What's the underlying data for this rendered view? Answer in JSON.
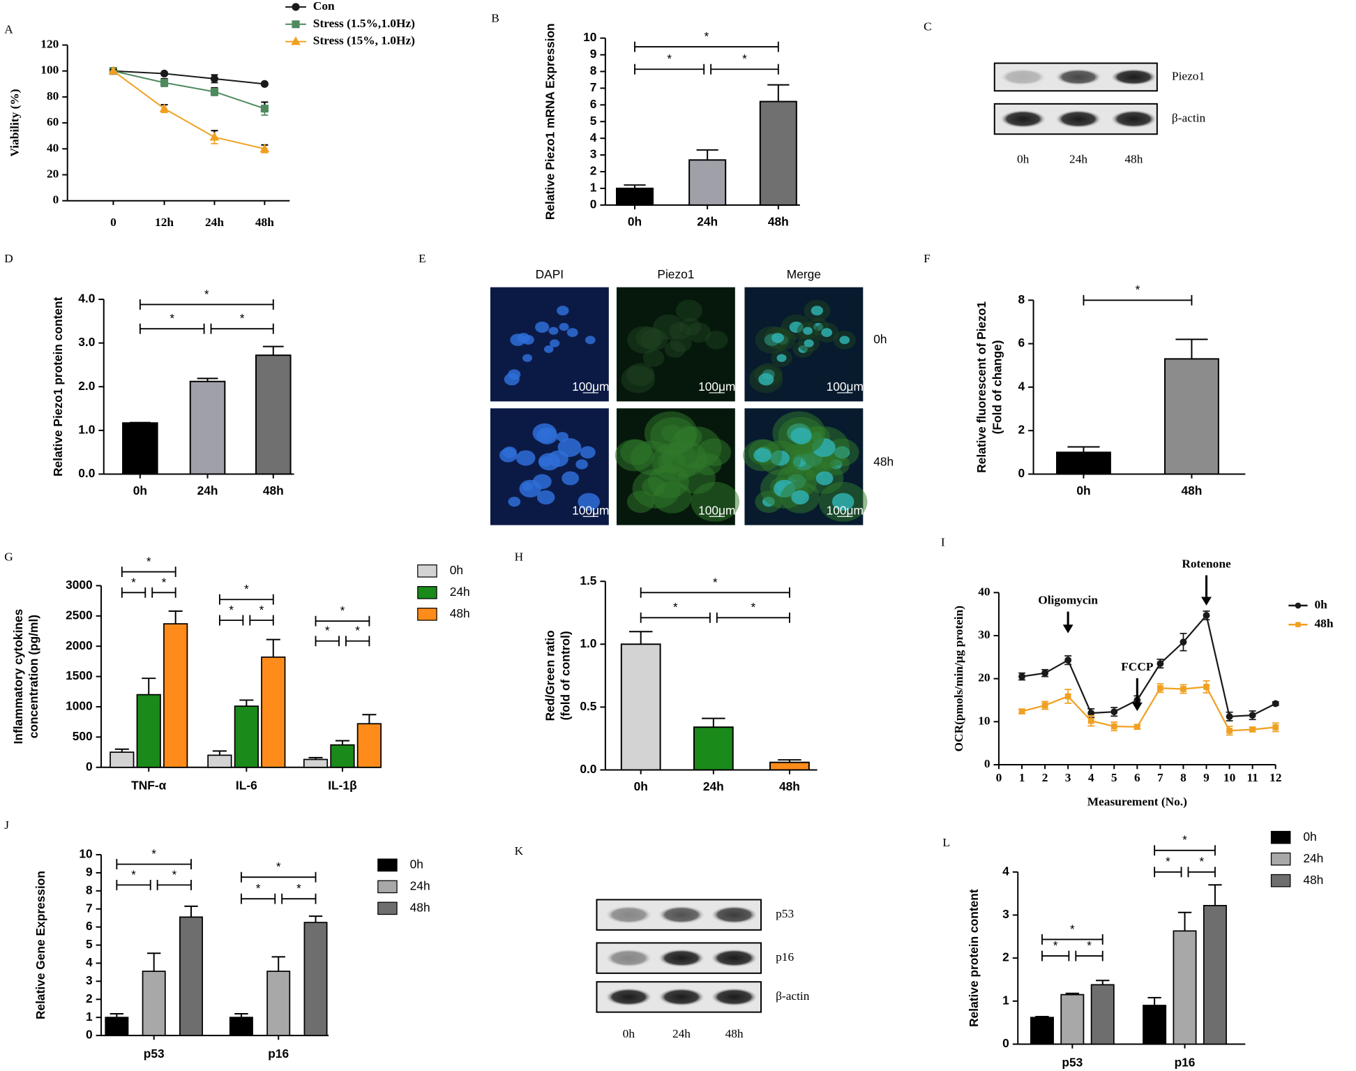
{
  "chart_data": [
    {
      "type": "line",
      "panel": "A",
      "ylabel": "Viability (%)",
      "categories": [
        "0",
        "12h",
        "24h",
        "48h"
      ],
      "ylim": [
        0,
        120
      ],
      "yticks": [
        0,
        20,
        40,
        60,
        80,
        100,
        120
      ],
      "series": [
        {
          "name": "Con",
          "color": "#1a1a1a",
          "marker": "circle",
          "values": [
            100,
            98,
            94,
            90
          ],
          "errors": [
            1,
            1,
            3,
            1
          ]
        },
        {
          "name": "Stress (1.5%,1.0Hz)",
          "color": "#4e8a5e",
          "marker": "square",
          "values": [
            100,
            91,
            84,
            71
          ],
          "errors": [
            1,
            3,
            3,
            5
          ]
        },
        {
          "name": "Stress (15%, 1.0Hz)",
          "color": "#f0a020",
          "marker": "triangle",
          "values": [
            100,
            71,
            49,
            40
          ],
          "errors": [
            1,
            3,
            5,
            3
          ]
        }
      ]
    },
    {
      "type": "bar",
      "panel": "B",
      "ylabel": "Relative Piezo1 mRNA Expression",
      "categories": [
        "0h",
        "24h",
        "48h"
      ],
      "values": [
        1,
        2.7,
        6.2
      ],
      "errors": [
        0.2,
        0.6,
        1.0
      ],
      "colors": [
        "#000000",
        "#a0a0a8",
        "#707070"
      ],
      "ylim": [
        0,
        10
      ],
      "yticks": [
        0,
        1,
        2,
        3,
        4,
        5,
        6,
        7,
        8,
        9,
        10
      ],
      "significance": [
        "*",
        "*",
        "*"
      ]
    },
    {
      "type": "blot",
      "panel": "C",
      "bands": [
        "Piezo1",
        "β-actin"
      ],
      "lanes": [
        "0h",
        "24h",
        "48h"
      ]
    },
    {
      "type": "bar",
      "panel": "D",
      "ylabel": "Relative Piezo1 protein content",
      "categories": [
        "0h",
        "24h",
        "48h"
      ],
      "values": [
        1.17,
        2.12,
        2.72
      ],
      "errors": [
        0.01,
        0.07,
        0.2
      ],
      "colors": [
        "#000000",
        "#a0a0a8",
        "#707070"
      ],
      "ylim": [
        0,
        4
      ],
      "yticks": [
        {
          "value": 0,
          "label": "0.0"
        },
        {
          "value": 1,
          "label": "1.0"
        },
        {
          "value": 2,
          "label": "2.0"
        },
        {
          "value": 3,
          "label": "3.0"
        },
        {
          "value": 4,
          "label": "4.0"
        }
      ],
      "significance": [
        "*",
        "*",
        "*"
      ]
    },
    {
      "type": "images",
      "panel": "E",
      "columns": [
        "DAPI",
        "Piezo1",
        "Merge"
      ],
      "rows": [
        "0h",
        "48h"
      ],
      "scale_label": "100μm"
    },
    {
      "type": "bar",
      "panel": "F",
      "ylabel": [
        "Relative fluorescent of  Piezo1",
        "(Fold of change)"
      ],
      "categories": [
        "0h",
        "48h"
      ],
      "values": [
        1,
        5.3
      ],
      "errors": [
        0.25,
        0.9
      ],
      "colors": [
        "#000000",
        "#8c8c8c"
      ],
      "ylim": [
        0,
        8
      ],
      "yticks": [
        0,
        2,
        4,
        6,
        8
      ],
      "significance": [
        "*"
      ]
    },
    {
      "type": "groupedbar",
      "panel": "G",
      "ylabel": [
        "Inflammatory cytokines",
        "concentration (pg/ml)"
      ],
      "categories": [
        "TNF-α",
        "IL-6",
        "IL-1β"
      ],
      "ylim": [
        0,
        3000
      ],
      "yticks": [
        0,
        500,
        1000,
        1500,
        2000,
        2500,
        3000
      ],
      "series": [
        {
          "name": "0h",
          "color": "#d3d3d3",
          "values": [
            250,
            200,
            130
          ],
          "errors": [
            50,
            70,
            30
          ]
        },
        {
          "name": "24h",
          "color": "#1a8a1a",
          "values": [
            1200,
            1010,
            370
          ],
          "errors": [
            270,
            100,
            70
          ]
        },
        {
          "name": "48h",
          "color": "#ff8c1a",
          "values": [
            2370,
            1820,
            720
          ],
          "errors": [
            210,
            290,
            150
          ]
        }
      ],
      "significance": [
        "*",
        "*",
        "*",
        "*",
        "*",
        "*",
        "*",
        "*",
        "*"
      ]
    },
    {
      "type": "bar",
      "panel": "H",
      "ylabel": [
        "Red/Green ratio",
        "(fold of control)"
      ],
      "categories": [
        "0h",
        "24h",
        "48h"
      ],
      "values": [
        1.0,
        0.34,
        0.06
      ],
      "errors": [
        0.1,
        0.07,
        0.02
      ],
      "colors": [
        "#d3d3d3",
        "#1a8a1a",
        "#ff8c1a"
      ],
      "ylim": [
        0,
        1.5
      ],
      "yticks": [
        {
          "value": 0,
          "label": "0.0"
        },
        0.5,
        {
          "value": 1,
          "label": "1.0"
        },
        1.5
      ],
      "significance": [
        "*",
        "*",
        "*"
      ]
    },
    {
      "type": "linex",
      "panel": "I",
      "xlabel": "Measurement (No.)",
      "ylabel": "OCR(pmols/min/μg protein)",
      "x": [
        1,
        2,
        3,
        4,
        5,
        6,
        7,
        8,
        9,
        10,
        11,
        12
      ],
      "xlim": [
        0,
        12
      ],
      "xticks": [
        0,
        1,
        2,
        3,
        4,
        5,
        6,
        7,
        8,
        9,
        10,
        11,
        12
      ],
      "ylim": [
        0,
        40
      ],
      "yticks": [
        0,
        10,
        20,
        30,
        40
      ],
      "series": [
        {
          "name": "0h",
          "color": "#1a1a1a",
          "values": [
            20.5,
            21.3,
            24.3,
            12,
            12.3,
            15,
            23.5,
            28.5,
            34.7,
            11.2,
            11.5,
            14.2
          ],
          "errors": [
            0.8,
            0.8,
            1,
            1,
            1,
            1,
            1,
            2,
            1,
            1,
            1,
            0.4
          ]
        },
        {
          "name": "48h",
          "color": "#f0a020",
          "values": [
            12.4,
            13.8,
            15.9,
            10.2,
            8.9,
            8.8,
            17.8,
            17.6,
            18.1,
            7.9,
            8.2,
            8.7
          ],
          "errors": [
            0.5,
            0.9,
            1.6,
            1.2,
            1,
            0.5,
            1,
            1,
            1.4,
            1,
            0.5,
            1
          ]
        }
      ],
      "annotations": [
        {
          "text": "Oligomycin",
          "x": 3
        },
        {
          "text": "FCCP",
          "x": 6
        },
        {
          "text": "Rotenone",
          "x": 9
        }
      ]
    },
    {
      "type": "groupedbar",
      "panel": "J",
      "ylabel": "Relative Gene Expression",
      "categories": [
        "p53",
        "p16"
      ],
      "ylim": [
        0,
        10
      ],
      "yticks": [
        0,
        1,
        2,
        3,
        4,
        5,
        6,
        7,
        8,
        9,
        10
      ],
      "series": [
        {
          "name": "0h",
          "color": "#000000",
          "values": [
            1,
            1
          ],
          "errors": [
            0.2,
            0.2
          ]
        },
        {
          "name": "24h",
          "color": "#a8a8a8",
          "values": [
            3.55,
            3.55
          ],
          "errors": [
            1,
            0.8
          ]
        },
        {
          "name": "48h",
          "color": "#6e6e6e",
          "values": [
            6.55,
            6.25
          ],
          "errors": [
            0.6,
            0.35
          ]
        }
      ],
      "significance": [
        "*",
        "*",
        "*",
        "*",
        "*",
        "*"
      ]
    },
    {
      "type": "blot",
      "panel": "K",
      "bands": [
        "p53",
        "p16",
        "β-actin"
      ],
      "lanes": [
        "0h",
        "24h",
        "48h"
      ]
    },
    {
      "type": "groupedbar",
      "panel": "L",
      "ylabel": "Relative protein content",
      "categories": [
        "p53",
        "p16"
      ],
      "ylim": [
        0,
        4
      ],
      "yticks": [
        0,
        1,
        2,
        3,
        4
      ],
      "series": [
        {
          "name": "0h",
          "color": "#000000",
          "values": [
            0.62,
            0.9
          ],
          "errors": [
            0.02,
            0.18
          ]
        },
        {
          "name": "24h",
          "color": "#a8a8a8",
          "values": [
            1.15,
            2.63
          ],
          "errors": [
            0.03,
            0.43
          ]
        },
        {
          "name": "48h",
          "color": "#6e6e6e",
          "values": [
            1.38,
            3.22
          ],
          "errors": [
            0.1,
            0.48
          ]
        }
      ],
      "significance": [
        "*",
        "*",
        "*",
        "*",
        "*",
        "*"
      ]
    }
  ]
}
